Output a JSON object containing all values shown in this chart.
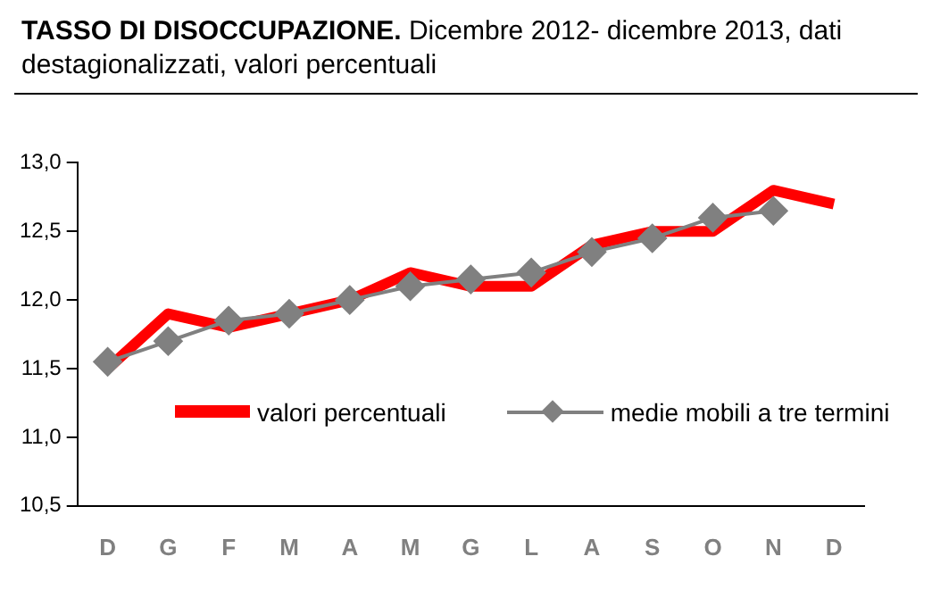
{
  "chart_data": {
    "type": "line",
    "title": "TASSO DI DISOCCUPAZIONE.",
    "subtitle": "Dicembre 2012- dicembre 2013, dati destagionalizzati, valori percentuali",
    "categories": [
      "D",
      "G",
      "F",
      "M",
      "A",
      "M",
      "G",
      "L",
      "A",
      "S",
      "O",
      "N",
      "D"
    ],
    "series": [
      {
        "name": "valori percentuali",
        "color": "#ff0000",
        "marker": "none",
        "values": [
          11.5,
          11.9,
          11.8,
          11.9,
          12.0,
          12.2,
          12.1,
          12.1,
          12.4,
          12.5,
          12.5,
          12.8,
          12.7
        ]
      },
      {
        "name": "medie mobili a tre termini",
        "color": "#808080",
        "marker": "diamond",
        "values": [
          11.55,
          11.7,
          11.85,
          11.9,
          12.0,
          12.1,
          12.15,
          12.2,
          12.35,
          12.45,
          12.6,
          12.65,
          null
        ]
      }
    ],
    "ylim": [
      10.5,
      13.0
    ],
    "yticks": [
      {
        "value": 10.5,
        "label": "10,5"
      },
      {
        "value": 11.0,
        "label": "11,0"
      },
      {
        "value": 11.5,
        "label": "11,5"
      },
      {
        "value": 12.0,
        "label": "12,0"
      },
      {
        "value": 12.5,
        "label": "12,5"
      },
      {
        "value": 13.0,
        "label": "13,0"
      }
    ],
    "grid": false,
    "legend": "bottom"
  }
}
